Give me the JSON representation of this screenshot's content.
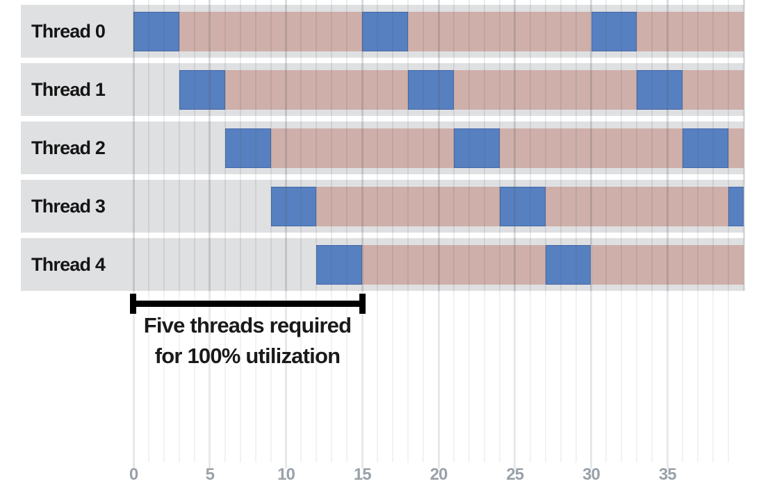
{
  "figure": {
    "annotation": {
      "line1": "Five threads required",
      "line2": "for 100% utilization"
    }
  },
  "chart_data": {
    "type": "bar",
    "subtype": "horizontal-gantt-timeline",
    "title": "",
    "xlabel": "",
    "ylabel": "",
    "categories": [
      "Thread 0",
      "Thread 1",
      "Thread 2",
      "Thread 3",
      "Thread 4"
    ],
    "x_axis": {
      "xlim": [
        0,
        40
      ],
      "tick_labels": [
        0,
        5,
        10,
        15,
        20,
        25,
        30,
        35
      ],
      "minor_grid_step": 1,
      "major_grid_step": 5,
      "grid": true,
      "legend_position": "none"
    },
    "states": [
      {
        "name": "executing",
        "color": "#5780c0"
      },
      {
        "name": "stalled",
        "color": "#cfafaa"
      }
    ],
    "series": [
      {
        "name": "Thread 0",
        "segments": [
          {
            "start": 0,
            "end": 3,
            "state": "executing"
          },
          {
            "start": 3,
            "end": 15,
            "state": "stalled"
          },
          {
            "start": 15,
            "end": 18,
            "state": "executing"
          },
          {
            "start": 18,
            "end": 30,
            "state": "stalled"
          },
          {
            "start": 30,
            "end": 33,
            "state": "executing"
          },
          {
            "start": 33,
            "end": 40,
            "state": "stalled"
          }
        ]
      },
      {
        "name": "Thread 1",
        "segments": [
          {
            "start": 3,
            "end": 6,
            "state": "executing"
          },
          {
            "start": 6,
            "end": 18,
            "state": "stalled"
          },
          {
            "start": 18,
            "end": 21,
            "state": "executing"
          },
          {
            "start": 21,
            "end": 33,
            "state": "stalled"
          },
          {
            "start": 33,
            "end": 36,
            "state": "executing"
          },
          {
            "start": 36,
            "end": 40,
            "state": "stalled"
          }
        ]
      },
      {
        "name": "Thread 2",
        "segments": [
          {
            "start": 6,
            "end": 9,
            "state": "executing"
          },
          {
            "start": 9,
            "end": 21,
            "state": "stalled"
          },
          {
            "start": 21,
            "end": 24,
            "state": "executing"
          },
          {
            "start": 24,
            "end": 36,
            "state": "stalled"
          },
          {
            "start": 36,
            "end": 39,
            "state": "executing"
          },
          {
            "start": 39,
            "end": 40,
            "state": "stalled"
          }
        ]
      },
      {
        "name": "Thread 3",
        "segments": [
          {
            "start": 9,
            "end": 12,
            "state": "executing"
          },
          {
            "start": 12,
            "end": 24,
            "state": "stalled"
          },
          {
            "start": 24,
            "end": 27,
            "state": "executing"
          },
          {
            "start": 27,
            "end": 39,
            "state": "stalled"
          },
          {
            "start": 39,
            "end": 40,
            "state": "executing"
          }
        ]
      },
      {
        "name": "Thread 4",
        "segments": [
          {
            "start": 12,
            "end": 15,
            "state": "executing"
          },
          {
            "start": 15,
            "end": 27,
            "state": "stalled"
          },
          {
            "start": 27,
            "end": 30,
            "state": "executing"
          },
          {
            "start": 30,
            "end": 40,
            "state": "stalled"
          }
        ]
      }
    ],
    "annotation": {
      "text": "Five threads required for 100% utilization",
      "span_from": 0,
      "span_to": 15
    }
  },
  "colors": {
    "executing_block": "#5780c0",
    "stalled_block": "#cfafaa",
    "row_band": "#dfe0e2",
    "tick_label": "#9aa1a9",
    "annotation_text": "#1a1a1a",
    "bracket": "#000000"
  }
}
